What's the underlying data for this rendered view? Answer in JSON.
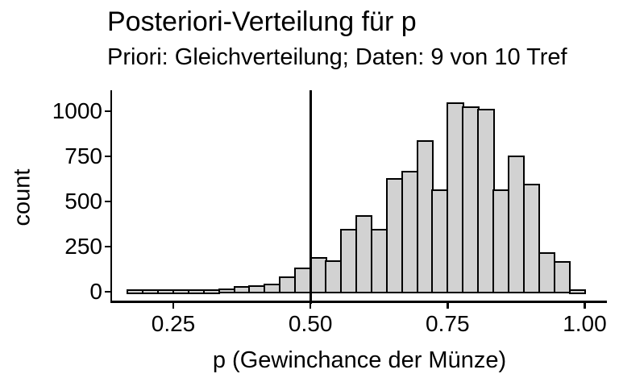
{
  "chart_data": {
    "type": "bar",
    "subtype": "histogram",
    "title": "Posteriori-Verteilung für p",
    "subtitle": "Priori: Gleichverteilung; Daten: 9 von 10 Tref",
    "xlabel": "p (Gewinchance der Münze)",
    "ylabel": "count",
    "bins": {
      "start": 0.1667,
      "width": 0.0278
    },
    "counts": [
      2,
      3,
      5,
      7,
      10,
      13,
      18,
      30,
      34,
      46,
      86,
      135,
      190,
      175,
      350,
      425,
      350,
      630,
      670,
      840,
      565,
      1050,
      1025,
      1015,
      567,
      753,
      600,
      220,
      168,
      13
    ],
    "reference_line_x": 0.5,
    "x_ticks": [
      {
        "value": 0.25,
        "label": "0.25"
      },
      {
        "value": 0.5,
        "label": "0.50"
      },
      {
        "value": 0.75,
        "label": "0.75"
      },
      {
        "value": 1.0,
        "label": "1.00"
      }
    ],
    "y_ticks": [
      {
        "value": 0,
        "label": "0"
      },
      {
        "value": 250,
        "label": "250"
      },
      {
        "value": 500,
        "label": "500"
      },
      {
        "value": 750,
        "label": "750"
      },
      {
        "value": 1000,
        "label": "1000"
      }
    ],
    "xlim": [
      0.14,
      1.04
    ],
    "ylim": [
      0,
      1050
    ],
    "grid": false,
    "legend": "none",
    "colors": {
      "bar_fill": "#d2d2d2",
      "bar_stroke": "#000000",
      "axis": "#000000",
      "text": "#000000",
      "background": "#ffffff"
    }
  }
}
